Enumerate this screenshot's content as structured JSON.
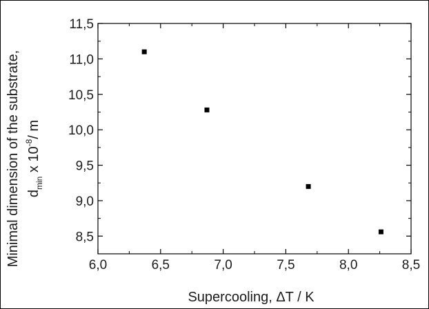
{
  "chart_data": {
    "type": "scatter",
    "title": "",
    "xlabel": "Supercooling, ΔT / K",
    "ylabel": {
      "line1": "Minimal dimension of the substrate,",
      "line2_main": "d",
      "line2_sub": "min",
      "line2_mid": " x 10",
      "line2_sup": "-8",
      "line2_end": "/ m"
    },
    "xlim": [
      6.0,
      8.5
    ],
    "ylim": [
      8.25,
      11.5
    ],
    "xticks": [
      "6,0",
      "6,5",
      "7,0",
      "7,5",
      "8,0",
      "8,5"
    ],
    "xtick_values": [
      6.0,
      6.5,
      7.0,
      7.5,
      8.0,
      8.5
    ],
    "yticks": [
      "8,5",
      "9,0",
      "9,5",
      "10,0",
      "10,5",
      "11,0",
      "11,5"
    ],
    "ytick_values": [
      8.5,
      9.0,
      9.5,
      10.0,
      10.5,
      11.0,
      11.5
    ],
    "grid": false,
    "legend": "none",
    "marker": "square",
    "marker_color": "#000000",
    "points": [
      {
        "x": 6.37,
        "y": 11.1
      },
      {
        "x": 6.87,
        "y": 10.28
      },
      {
        "x": 7.68,
        "y": 9.2
      },
      {
        "x": 8.26,
        "y": 8.56
      }
    ]
  }
}
